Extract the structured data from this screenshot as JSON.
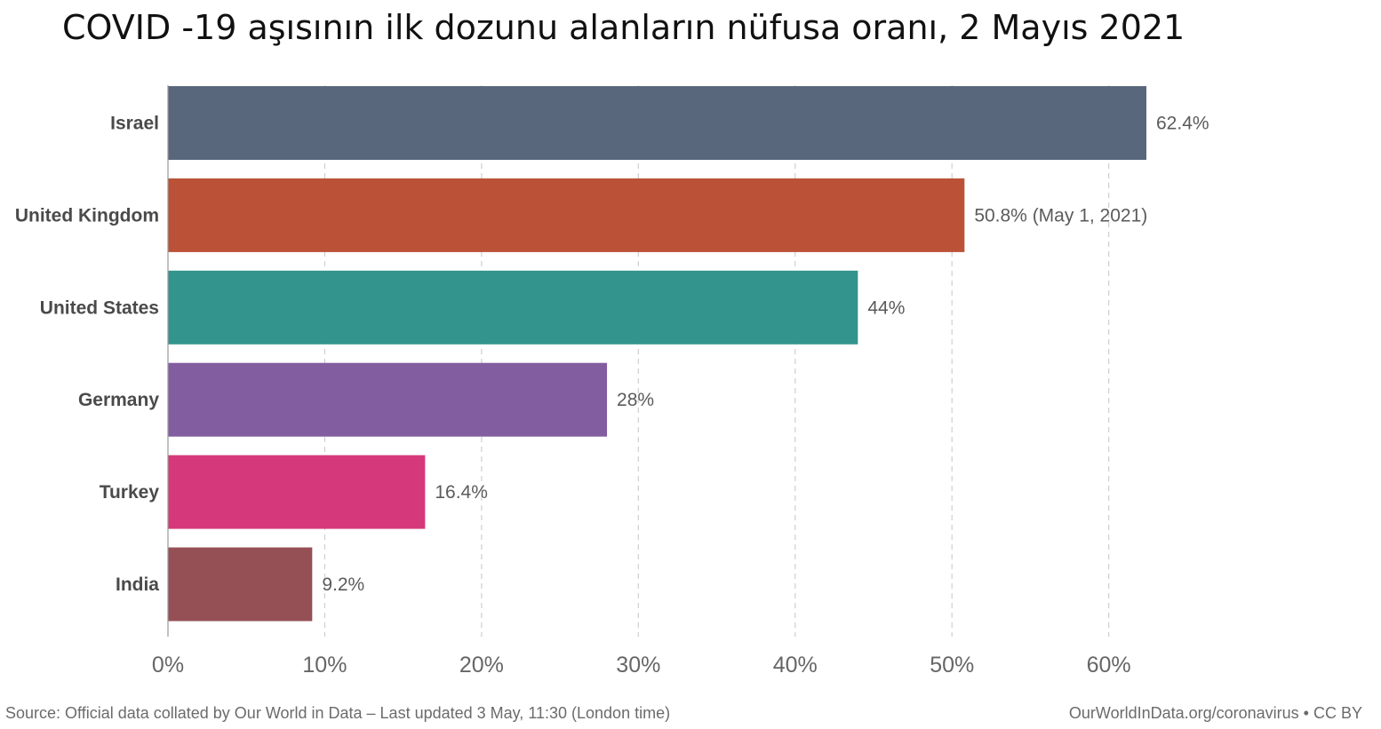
{
  "chart_data": {
    "type": "bar",
    "orientation": "horizontal",
    "title": "COVID -19 aşısının ilk dozunu alanların nüfusa oranı, 2 Mayıs 2021",
    "categories": [
      "Israel",
      "United Kingdom",
      "United States",
      "Germany",
      "Turkey",
      "India"
    ],
    "values": [
      62.4,
      50.8,
      44,
      28,
      16.4,
      9.2
    ],
    "value_labels": [
      "62.4%",
      "50.8% (May 1, 2021)",
      "44%",
      "28%",
      "16.4%",
      "9.2%"
    ],
    "colors": [
      "#58677b",
      "#bb5238",
      "#33948d",
      "#825da0",
      "#d6397b",
      "#955056"
    ],
    "xlim": [
      0,
      62.4
    ],
    "x_ticks": [
      0,
      10,
      20,
      30,
      40,
      50,
      60
    ],
    "x_tick_labels": [
      "0%",
      "10%",
      "20%",
      "30%",
      "40%",
      "50%",
      "60%"
    ],
    "grid": true,
    "xlabel": "",
    "ylabel": ""
  },
  "footer": {
    "source": "Source: Official data collated by Our World in Data – Last updated 3 May, 11:30 (London time)",
    "credit": "OurWorldInData.org/coronavirus • CC BY"
  }
}
